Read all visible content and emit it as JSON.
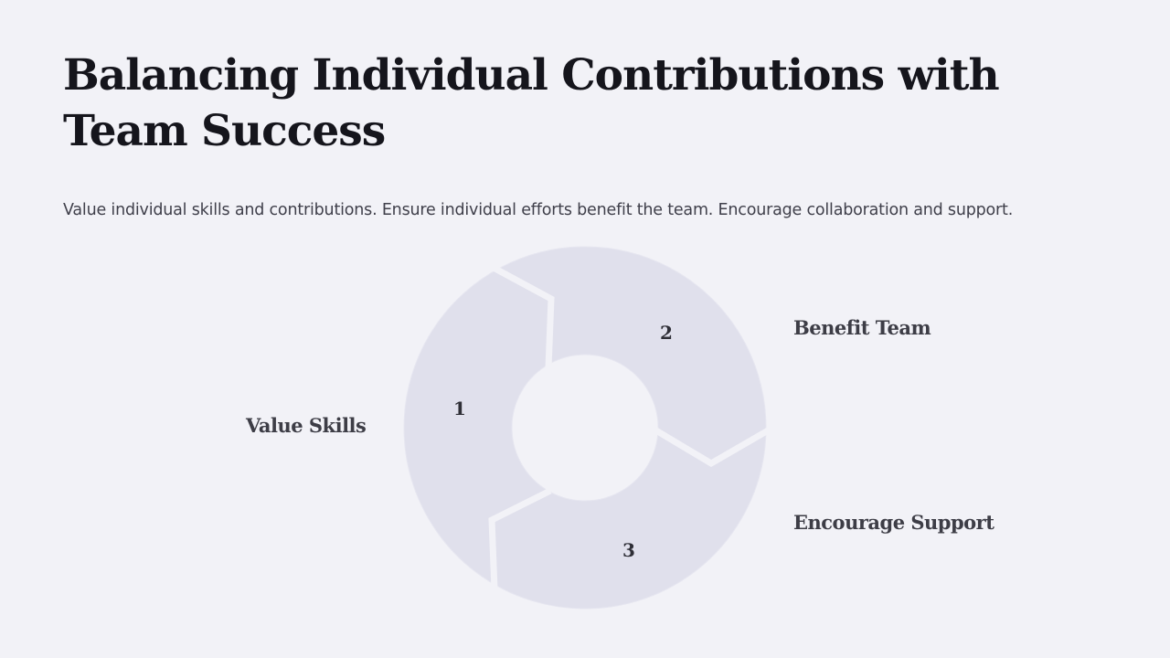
{
  "title": "Balancing Individual Contributions with Team Success",
  "subtitle": "Value individual skills and contributions. Ensure individual efforts benefit the team. Encourage collaboration and support.",
  "diagram": {
    "type": "cycle",
    "segment_color": "#e0e0ec",
    "steps": [
      {
        "number": "1",
        "label": "Value Skills"
      },
      {
        "number": "2",
        "label": "Benefit Team"
      },
      {
        "number": "3",
        "label": "Encourage Support"
      }
    ]
  }
}
